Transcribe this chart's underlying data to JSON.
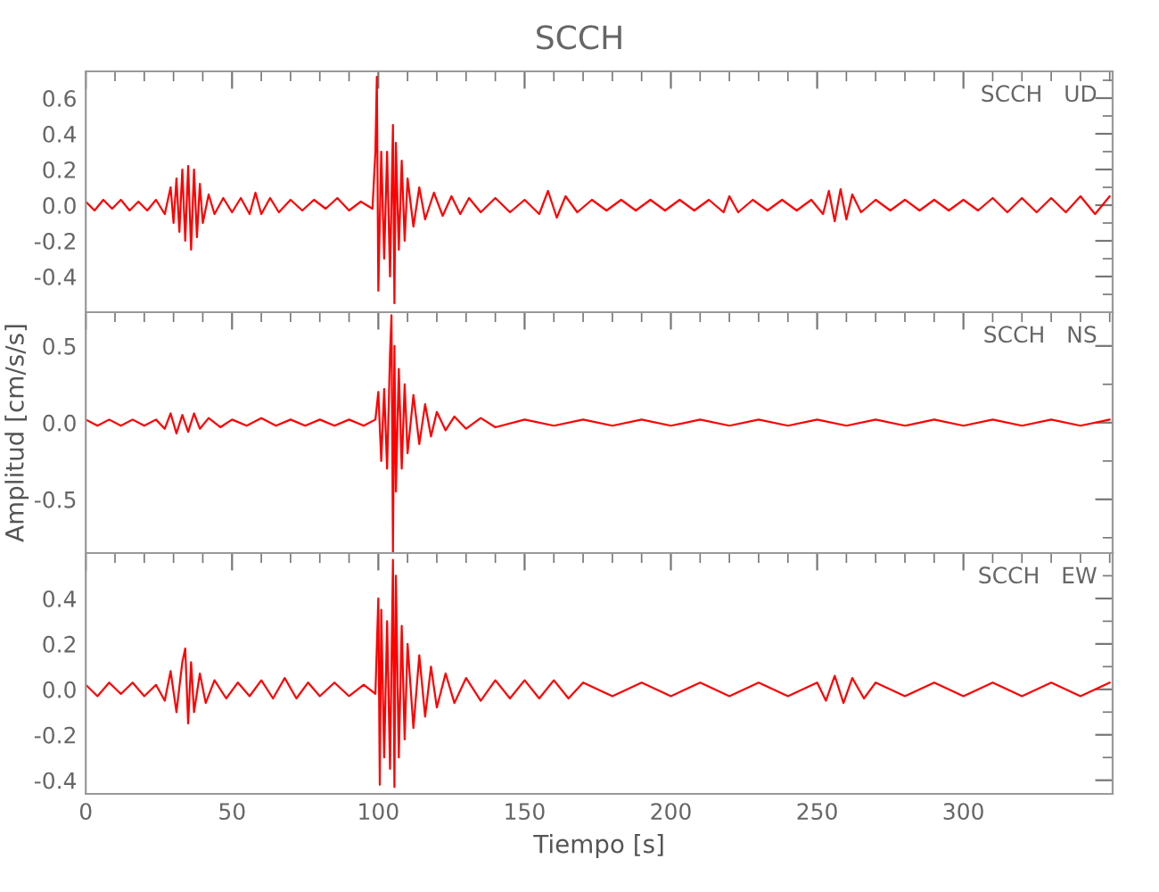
{
  "chart_data": [
    {
      "type": "line",
      "title": "SCCH",
      "annotations": [
        "SCCH   UD"
      ],
      "xlim": [
        0,
        351
      ],
      "xticks": [
        0,
        50,
        100,
        150,
        200,
        250,
        300
      ],
      "ylim": [
        -0.6,
        0.75
      ],
      "yticks": [
        {
          "value": -0.4,
          "label": "-0.4"
        },
        {
          "value": -0.2,
          "label": "-0.2"
        },
        {
          "value": 0,
          "label": "0.0"
        },
        {
          "value": 0.2,
          "label": "0.2"
        },
        {
          "value": 0.4,
          "label": "0.4"
        },
        {
          "value": 0.6,
          "label": "0.6"
        }
      ],
      "tick_labels": "y",
      "grid": false,
      "legend": false,
      "series": [
        {
          "color": "#ff0000",
          "x": [
            0,
            3,
            6,
            9,
            12,
            15,
            18,
            21,
            24,
            27,
            29,
            30,
            31,
            32,
            33,
            34,
            35,
            36,
            37,
            38,
            39,
            40,
            42,
            44,
            47,
            50,
            53,
            56,
            58,
            60,
            63,
            66,
            70,
            74,
            78,
            82,
            86,
            90,
            94,
            98,
            99,
            99.5,
            100,
            101,
            102,
            103,
            104,
            105,
            105.5,
            106,
            107,
            108,
            109,
            110,
            112,
            114,
            116,
            119,
            122,
            125,
            128,
            131,
            135,
            140,
            145,
            150,
            155,
            158,
            161,
            164,
            168,
            173,
            178,
            183,
            188,
            193,
            198,
            203,
            208,
            213,
            218,
            220,
            223,
            228,
            233,
            238,
            243,
            248,
            252,
            254,
            256,
            258,
            260,
            262,
            265,
            270,
            275,
            280,
            285,
            290,
            295,
            300,
            305,
            310,
            315,
            320,
            325,
            330,
            335,
            340,
            345,
            350
          ],
          "values": [
            0.02,
            -0.03,
            0.03,
            -0.02,
            0.03,
            -0.03,
            0.02,
            -0.03,
            0.03,
            -0.05,
            0.1,
            -0.1,
            0.15,
            -0.15,
            0.2,
            -0.2,
            0.22,
            -0.25,
            0.2,
            -0.18,
            0.12,
            -0.1,
            0.06,
            -0.05,
            0.04,
            -0.04,
            0.04,
            -0.05,
            0.07,
            -0.05,
            0.04,
            -0.04,
            0.03,
            -0.03,
            0.03,
            -0.02,
            0.04,
            -0.03,
            0.02,
            -0.02,
            0.3,
            0.72,
            -0.48,
            0.3,
            -0.3,
            0.3,
            -0.4,
            0.45,
            -0.55,
            0.35,
            -0.25,
            0.25,
            -0.2,
            0.15,
            -0.12,
            0.1,
            -0.08,
            0.07,
            -0.06,
            0.05,
            -0.05,
            0.04,
            -0.04,
            0.04,
            -0.04,
            0.03,
            -0.05,
            0.08,
            -0.07,
            0.05,
            -0.04,
            0.03,
            -0.03,
            0.03,
            -0.03,
            0.03,
            -0.03,
            0.03,
            -0.03,
            0.03,
            -0.04,
            0.05,
            -0.04,
            0.03,
            -0.03,
            0.03,
            -0.03,
            0.03,
            -0.05,
            0.08,
            -0.09,
            0.09,
            -0.08,
            0.06,
            -0.04,
            0.03,
            -0.03,
            0.03,
            -0.03,
            0.03,
            -0.03,
            0.03,
            -0.03,
            0.04,
            -0.04,
            0.04,
            -0.04,
            0.04,
            -0.04,
            0.05,
            -0.05,
            0.05
          ]
        }
      ]
    },
    {
      "type": "line",
      "ylabel": "Amplitud [cm/s/s]",
      "annotations": [
        "SCCH   NS"
      ],
      "xlim": [
        0,
        351
      ],
      "xticks": [
        0,
        50,
        100,
        150,
        200,
        250,
        300
      ],
      "ylim": [
        -0.85,
        0.72
      ],
      "yticks": [
        {
          "value": -0.5,
          "label": "-0.5"
        },
        {
          "value": 0,
          "label": "0.0"
        },
        {
          "value": 0.5,
          "label": "0.5"
        }
      ],
      "tick_labels": "y",
      "grid": false,
      "legend": false,
      "series": [
        {
          "color": "#ff0000",
          "x": [
            0,
            4,
            8,
            12,
            16,
            20,
            24,
            27,
            29,
            31,
            33,
            35,
            37,
            39,
            42,
            46,
            50,
            55,
            60,
            65,
            70,
            75,
            80,
            85,
            90,
            95,
            99,
            100,
            101,
            102,
            103,
            104,
            104.5,
            105,
            105.5,
            106,
            107,
            108,
            109,
            110,
            112,
            114,
            116,
            118,
            120,
            123,
            126,
            130,
            135,
            140,
            150,
            160,
            170,
            180,
            190,
            200,
            210,
            220,
            230,
            240,
            250,
            260,
            270,
            280,
            290,
            300,
            310,
            320,
            330,
            340,
            350
          ],
          "values": [
            0.02,
            -0.02,
            0.02,
            -0.02,
            0.02,
            -0.02,
            0.02,
            -0.04,
            0.06,
            -0.07,
            0.05,
            -0.06,
            0.06,
            -0.04,
            0.03,
            -0.03,
            0.02,
            -0.02,
            0.03,
            -0.02,
            0.02,
            -0.02,
            0.02,
            -0.02,
            0.02,
            -0.02,
            0.02,
            0.2,
            -0.25,
            0.22,
            -0.3,
            0.45,
            0.7,
            -0.85,
            0.5,
            -0.45,
            0.35,
            -0.3,
            0.25,
            -0.2,
            0.18,
            -0.14,
            0.12,
            -0.09,
            0.07,
            -0.05,
            0.04,
            -0.04,
            0.03,
            -0.03,
            0.02,
            -0.02,
            0.02,
            -0.02,
            0.02,
            -0.02,
            0.02,
            -0.02,
            0.02,
            -0.02,
            0.02,
            -0.02,
            0.02,
            -0.02,
            0.02,
            -0.02,
            0.02,
            -0.02,
            0.02,
            -0.02,
            0.02
          ]
        }
      ]
    },
    {
      "type": "line",
      "xlabel": "Tiempo [s]",
      "annotations": [
        "SCCH   EW"
      ],
      "xlim": [
        0,
        351
      ],
      "xticks": [
        0,
        50,
        100,
        150,
        200,
        250,
        300
      ],
      "ylim": [
        -0.46,
        0.6
      ],
      "yticks": [
        {
          "value": -0.4,
          "label": "-0.4"
        },
        {
          "value": -0.2,
          "label": "-0.2"
        },
        {
          "value": 0,
          "label": "0.0"
        },
        {
          "value": 0.2,
          "label": "0.2"
        },
        {
          "value": 0.4,
          "label": "0.4"
        }
      ],
      "grid": false,
      "legend": false,
      "series": [
        {
          "color": "#ff0000",
          "x": [
            0,
            4,
            8,
            12,
            16,
            20,
            24,
            27,
            29,
            31,
            33,
            34,
            35,
            36,
            37,
            39,
            41,
            44,
            48,
            52,
            56,
            60,
            64,
            68,
            72,
            76,
            80,
            85,
            90,
            95,
            99,
            100,
            100.5,
            101,
            102,
            103,
            104,
            105,
            105.5,
            106,
            107,
            108,
            109,
            110,
            112,
            114,
            116,
            118,
            120,
            123,
            126,
            130,
            135,
            140,
            145,
            150,
            155,
            160,
            165,
            170,
            180,
            190,
            200,
            210,
            220,
            230,
            240,
            250,
            253,
            256,
            259,
            262,
            266,
            270,
            280,
            290,
            300,
            310,
            320,
            330,
            340,
            350
          ],
          "values": [
            0.02,
            -0.03,
            0.03,
            -0.02,
            0.03,
            -0.03,
            0.02,
            -0.05,
            0.08,
            -0.1,
            0.12,
            0.18,
            -0.15,
            0.12,
            -0.1,
            0.07,
            -0.06,
            0.04,
            -0.04,
            0.03,
            -0.03,
            0.04,
            -0.04,
            0.05,
            -0.04,
            0.03,
            -0.03,
            0.03,
            -0.03,
            0.02,
            -0.02,
            0.4,
            -0.42,
            0.35,
            -0.3,
            0.3,
            -0.35,
            0.57,
            -0.43,
            0.5,
            -0.3,
            0.28,
            -0.22,
            0.2,
            -0.17,
            0.15,
            -0.12,
            0.1,
            -0.08,
            0.07,
            -0.06,
            0.05,
            -0.05,
            0.04,
            -0.04,
            0.04,
            -0.04,
            0.04,
            -0.04,
            0.03,
            -0.03,
            0.03,
            -0.03,
            0.03,
            -0.03,
            0.03,
            -0.03,
            0.03,
            -0.05,
            0.06,
            -0.06,
            0.05,
            -0.04,
            0.03,
            -0.03,
            0.03,
            -0.03,
            0.03,
            -0.03,
            0.03,
            -0.03,
            0.03
          ]
        }
      ]
    }
  ]
}
